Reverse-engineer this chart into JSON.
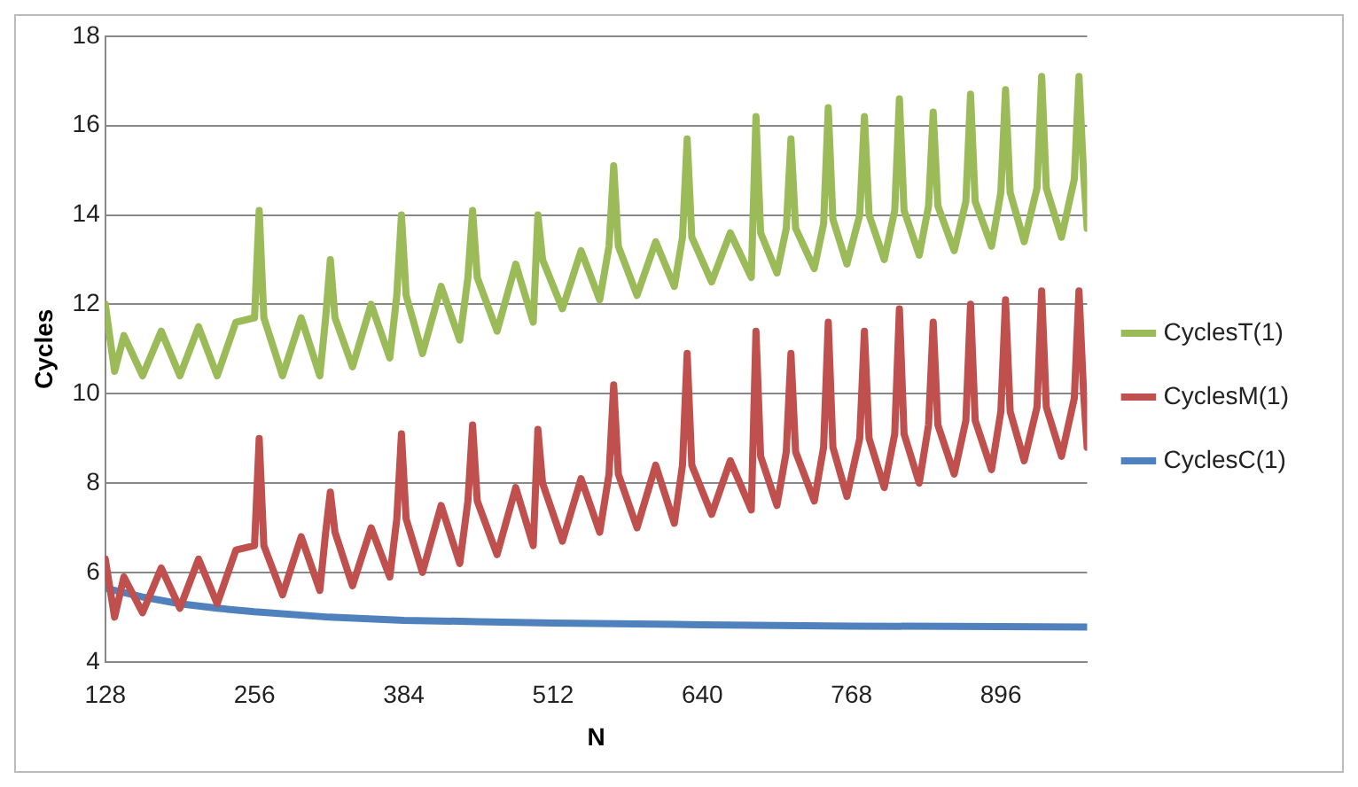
{
  "chart_data": {
    "type": "line",
    "xlabel": "N",
    "ylabel": "Cycles",
    "xlim": [
      128,
      970
    ],
    "xticks": [
      128,
      256,
      384,
      512,
      640,
      768,
      896
    ],
    "ylim": [
      4,
      18
    ],
    "yticks": [
      4,
      6,
      8,
      10,
      12,
      14,
      16,
      18
    ],
    "grid": "y",
    "legend": "right",
    "marker": "none",
    "line_style": "solid",
    "x": [
      128,
      136,
      144,
      160,
      176,
      192,
      208,
      224,
      240,
      256,
      260,
      264,
      280,
      296,
      312,
      317,
      321,
      325,
      340,
      356,
      372,
      378,
      382,
      386,
      400,
      416,
      432,
      439,
      443,
      447,
      464,
      480,
      495,
      499,
      503,
      520,
      536,
      552,
      560,
      564,
      568,
      584,
      600,
      616,
      623,
      627,
      631,
      648,
      664,
      682,
      686,
      690,
      704,
      712,
      716,
      720,
      736,
      744,
      748,
      752,
      764,
      775,
      779,
      783,
      796,
      805,
      809,
      813,
      826,
      834,
      838,
      842,
      856,
      866,
      870,
      874,
      888,
      896,
      900,
      904,
      916,
      927,
      931,
      935,
      948,
      959,
      963,
      967,
      970
    ],
    "series": [
      {
        "name": "CyclesT(1)",
        "color": "#9bbb59",
        "values": [
          12.0,
          10.5,
          11.3,
          10.4,
          11.4,
          10.4,
          11.5,
          10.4,
          11.6,
          11.7,
          14.1,
          11.7,
          10.4,
          11.7,
          10.4,
          11.7,
          13.0,
          11.7,
          10.6,
          12.0,
          10.8,
          12.2,
          14.0,
          12.2,
          10.9,
          12.4,
          11.2,
          12.6,
          14.1,
          12.6,
          11.4,
          12.9,
          11.6,
          14.0,
          13.0,
          11.9,
          13.2,
          12.1,
          13.3,
          15.1,
          13.3,
          12.2,
          13.4,
          12.4,
          13.5,
          15.7,
          13.5,
          12.5,
          13.6,
          12.6,
          16.2,
          13.6,
          12.7,
          13.7,
          15.7,
          13.7,
          12.8,
          13.8,
          16.4,
          13.9,
          12.9,
          14.0,
          16.2,
          14.0,
          13.0,
          14.1,
          16.6,
          14.1,
          13.1,
          14.2,
          16.3,
          14.2,
          13.2,
          14.3,
          16.7,
          14.3,
          13.3,
          14.5,
          16.8,
          14.5,
          13.4,
          14.6,
          17.1,
          14.6,
          13.5,
          14.8,
          17.1,
          14.9,
          13.7
        ]
      },
      {
        "name": "CyclesM(1)",
        "color": "#c0504d",
        "values": [
          6.3,
          5.0,
          5.9,
          5.1,
          6.1,
          5.2,
          6.3,
          5.3,
          6.5,
          6.6,
          9.0,
          6.6,
          5.5,
          6.8,
          5.6,
          6.9,
          7.8,
          6.9,
          5.7,
          7.0,
          5.9,
          7.2,
          9.1,
          7.2,
          6.0,
          7.5,
          6.2,
          7.6,
          9.3,
          7.6,
          6.4,
          7.9,
          6.6,
          9.2,
          8.0,
          6.7,
          8.1,
          6.9,
          8.2,
          10.2,
          8.2,
          7.0,
          8.4,
          7.1,
          8.4,
          10.9,
          8.4,
          7.3,
          8.5,
          7.4,
          11.4,
          8.6,
          7.5,
          8.7,
          10.9,
          8.7,
          7.6,
          8.8,
          11.6,
          8.8,
          7.7,
          9.0,
          11.4,
          9.0,
          7.9,
          9.1,
          11.9,
          9.1,
          8.0,
          9.3,
          11.6,
          9.3,
          8.2,
          9.4,
          12.0,
          9.4,
          8.3,
          9.6,
          12.1,
          9.6,
          8.5,
          9.7,
          12.3,
          9.7,
          8.6,
          9.9,
          12.3,
          10.0,
          8.8
        ]
      },
      {
        "name": "CyclesC(1)",
        "color": "#4f81bd",
        "x": [
          128,
          160,
          192,
          224,
          256,
          320,
          384,
          448,
          512,
          640,
          768,
          896,
          970
        ],
        "values": [
          5.65,
          5.45,
          5.3,
          5.2,
          5.12,
          5.0,
          4.93,
          4.9,
          4.87,
          4.83,
          4.8,
          4.79,
          4.78
        ]
      }
    ]
  }
}
